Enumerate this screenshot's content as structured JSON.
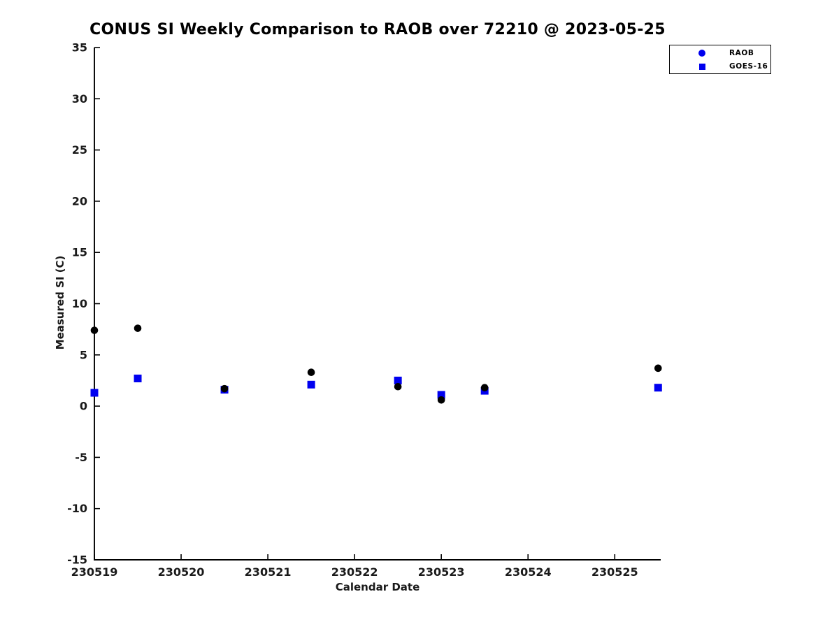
{
  "chart_data": {
    "type": "scatter",
    "title": "CONUS SI Weekly Comparison to RAOB over 72210 @ 2023-05-25",
    "xlabel": "Calendar Date",
    "ylabel": "Measured SI (C)",
    "xlim": [
      230519,
      230525.53
    ],
    "ylim": [
      -15,
      35
    ],
    "xticks": [
      230519,
      230520,
      230521,
      230522,
      230523,
      230524,
      230525
    ],
    "yticks": [
      35,
      30,
      25,
      20,
      15,
      10,
      5,
      0,
      -5,
      -10,
      -15
    ],
    "grid": false,
    "legend_position": "top-right",
    "axis_color": "#000000",
    "tick_label_color": "#1a1a1a",
    "x": [
      230519.0,
      230519.5,
      230520.5,
      230521.5,
      230522.5,
      230523.0,
      230523.5,
      230525.5
    ],
    "series": [
      {
        "name": "RAOB",
        "marker": "circle",
        "color": "#000000",
        "legend_marker_color": "#0000ee",
        "values": [
          7.4,
          7.6,
          1.7,
          3.3,
          1.9,
          0.6,
          1.8,
          3.7
        ]
      },
      {
        "name": "GOES-16",
        "marker": "square",
        "color": "#0000f0",
        "legend_marker_color": "#0000ee",
        "values": [
          1.3,
          2.7,
          1.6,
          2.1,
          2.5,
          1.1,
          1.5,
          1.8
        ]
      }
    ]
  }
}
